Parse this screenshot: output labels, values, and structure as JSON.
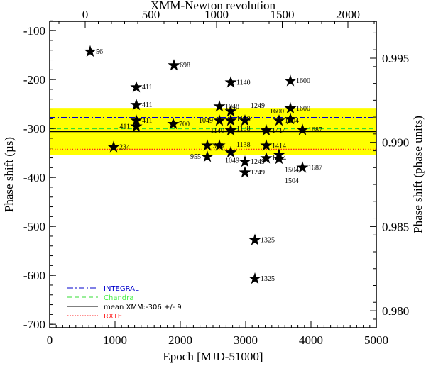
{
  "chart_data": {
    "type": "scatter",
    "xlabel": "Epoch [MJD-51000]",
    "ylabel": "Phase shift (µs)",
    "x2label": "XMM-Newton revolution",
    "y2label": "Phase shift (phase units)",
    "xlim": [
      0,
      5000
    ],
    "ylim": [
      -707,
      -81
    ],
    "xticks": [
      "0",
      "1000",
      "2000",
      "3000",
      "4000",
      "5000"
    ],
    "yticks": [
      "-100",
      "-200",
      "-300",
      "-400",
      "-500",
      "-600",
      "-700"
    ],
    "x2ticks": [
      "0",
      "500",
      "1000",
      "1500",
      "2000"
    ],
    "y2ticks": [
      "0.995",
      "0.990",
      "0.985",
      "0.980"
    ],
    "points": [
      {
        "x": 620,
        "y": -143,
        "label": "56"
      },
      {
        "x": 1902,
        "y": -171,
        "label": "698"
      },
      {
        "x": 1326,
        "y": -216,
        "label": "411"
      },
      {
        "x": 1326,
        "y": -252,
        "label": "411"
      },
      {
        "x": 1326,
        "y": -284,
        "label": "411"
      },
      {
        "x": 1326,
        "y": -296,
        "label": "411"
      },
      {
        "x": 1891,
        "y": -291,
        "label": "700"
      },
      {
        "x": 978,
        "y": -338,
        "label": "234"
      },
      {
        "x": 2772,
        "y": -206,
        "label": "1140"
      },
      {
        "x": 3685,
        "y": -203,
        "label": "1600"
      },
      {
        "x": 2598,
        "y": -255,
        "label": "1048"
      },
      {
        "x": 2772,
        "y": -265,
        "label": "1138"
      },
      {
        "x": 2598,
        "y": -284,
        "label": "1049"
      },
      {
        "x": 2772,
        "y": -284,
        "label": "1138"
      },
      {
        "x": 2989,
        "y": -284,
        "label": "1249"
      },
      {
        "x": 2772,
        "y": -304,
        "label": "1140"
      },
      {
        "x": 3315,
        "y": -304,
        "label": "1414"
      },
      {
        "x": 3511,
        "y": -284,
        "label": "1504"
      },
      {
        "x": 3685,
        "y": -259,
        "label": "1600"
      },
      {
        "x": 3685,
        "y": -281,
        "label": "1600"
      },
      {
        "x": 3870,
        "y": -303,
        "label": "1687"
      },
      {
        "x": 2413,
        "y": -335,
        "label": "955"
      },
      {
        "x": 2598,
        "y": -335,
        "label": "1049"
      },
      {
        "x": 2413,
        "y": -358,
        "label": "955"
      },
      {
        "x": 2772,
        "y": -349,
        "label": "1138"
      },
      {
        "x": 3315,
        "y": -335,
        "label": "1414"
      },
      {
        "x": 2989,
        "y": -368,
        "label": "1249"
      },
      {
        "x": 2989,
        "y": -390,
        "label": "1249"
      },
      {
        "x": 3315,
        "y": -361,
        "label": "1414"
      },
      {
        "x": 3511,
        "y": -354,
        "label": "1504"
      },
      {
        "x": 3511,
        "y": -362,
        "label": "1504"
      },
      {
        "x": 3870,
        "y": -380,
        "label": "1687"
      },
      {
        "x": 3141,
        "y": -528,
        "label": "1325"
      },
      {
        "x": 3141,
        "y": -607,
        "label": "1325"
      }
    ],
    "band": {
      "from": -258,
      "to": -354,
      "color": "#ffff00"
    },
    "lines": [
      {
        "name": "INTEGRAL",
        "y": -278,
        "color": "#0000cc",
        "style": "dashdot"
      },
      {
        "name": "Chandra",
        "y": -300,
        "color": "#33dd33",
        "style": "dash"
      },
      {
        "name": "mean XMM:-306 +/- 9",
        "y": -306,
        "color": "#000000",
        "style": "solid"
      },
      {
        "name": "RXTE",
        "y": -343,
        "color": "#ff2222",
        "style": "dot"
      }
    ],
    "legend_placement": "bottom-left"
  }
}
